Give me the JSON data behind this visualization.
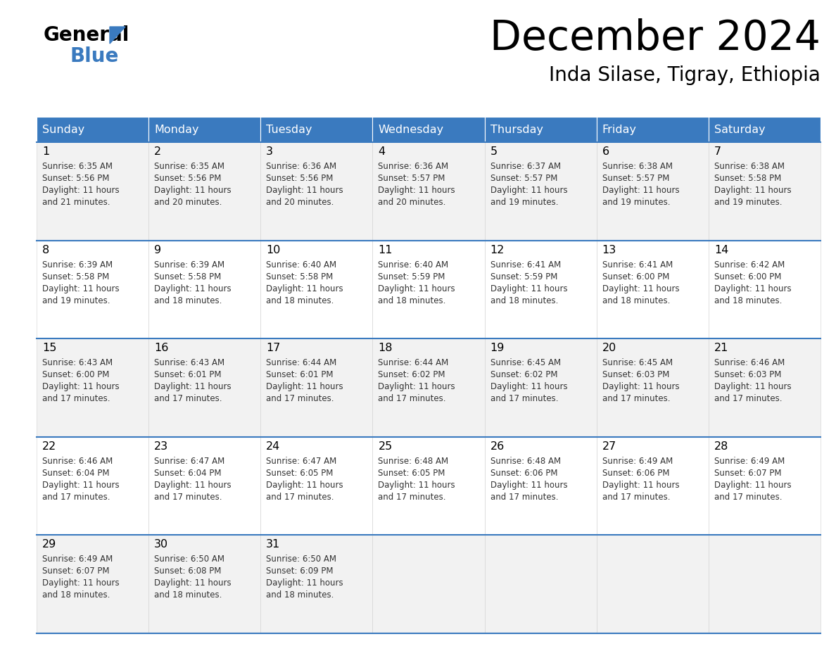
{
  "title": "December 2024",
  "subtitle": "Inda Silase, Tigray, Ethiopia",
  "header_color": "#3a7abf",
  "header_text_color": "#ffffff",
  "cell_bg_row0": "#f2f2f2",
  "cell_bg_row1": "#ffffff",
  "cell_bg_row2": "#f2f2f2",
  "cell_bg_row3": "#ffffff",
  "cell_bg_row4": "#f2f2f2",
  "day_names": [
    "Sunday",
    "Monday",
    "Tuesday",
    "Wednesday",
    "Thursday",
    "Friday",
    "Saturday"
  ],
  "days": [
    {
      "day": 1,
      "col": 0,
      "row": 0,
      "sunrise": "6:35 AM",
      "sunset": "5:56 PM",
      "daylight_hours": 11,
      "daylight_minutes": 21
    },
    {
      "day": 2,
      "col": 1,
      "row": 0,
      "sunrise": "6:35 AM",
      "sunset": "5:56 PM",
      "daylight_hours": 11,
      "daylight_minutes": 20
    },
    {
      "day": 3,
      "col": 2,
      "row": 0,
      "sunrise": "6:36 AM",
      "sunset": "5:56 PM",
      "daylight_hours": 11,
      "daylight_minutes": 20
    },
    {
      "day": 4,
      "col": 3,
      "row": 0,
      "sunrise": "6:36 AM",
      "sunset": "5:57 PM",
      "daylight_hours": 11,
      "daylight_minutes": 20
    },
    {
      "day": 5,
      "col": 4,
      "row": 0,
      "sunrise": "6:37 AM",
      "sunset": "5:57 PM",
      "daylight_hours": 11,
      "daylight_minutes": 19
    },
    {
      "day": 6,
      "col": 5,
      "row": 0,
      "sunrise": "6:38 AM",
      "sunset": "5:57 PM",
      "daylight_hours": 11,
      "daylight_minutes": 19
    },
    {
      "day": 7,
      "col": 6,
      "row": 0,
      "sunrise": "6:38 AM",
      "sunset": "5:58 PM",
      "daylight_hours": 11,
      "daylight_minutes": 19
    },
    {
      "day": 8,
      "col": 0,
      "row": 1,
      "sunrise": "6:39 AM",
      "sunset": "5:58 PM",
      "daylight_hours": 11,
      "daylight_minutes": 19
    },
    {
      "day": 9,
      "col": 1,
      "row": 1,
      "sunrise": "6:39 AM",
      "sunset": "5:58 PM",
      "daylight_hours": 11,
      "daylight_minutes": 18
    },
    {
      "day": 10,
      "col": 2,
      "row": 1,
      "sunrise": "6:40 AM",
      "sunset": "5:58 PM",
      "daylight_hours": 11,
      "daylight_minutes": 18
    },
    {
      "day": 11,
      "col": 3,
      "row": 1,
      "sunrise": "6:40 AM",
      "sunset": "5:59 PM",
      "daylight_hours": 11,
      "daylight_minutes": 18
    },
    {
      "day": 12,
      "col": 4,
      "row": 1,
      "sunrise": "6:41 AM",
      "sunset": "5:59 PM",
      "daylight_hours": 11,
      "daylight_minutes": 18
    },
    {
      "day": 13,
      "col": 5,
      "row": 1,
      "sunrise": "6:41 AM",
      "sunset": "6:00 PM",
      "daylight_hours": 11,
      "daylight_minutes": 18
    },
    {
      "day": 14,
      "col": 6,
      "row": 1,
      "sunrise": "6:42 AM",
      "sunset": "6:00 PM",
      "daylight_hours": 11,
      "daylight_minutes": 18
    },
    {
      "day": 15,
      "col": 0,
      "row": 2,
      "sunrise": "6:43 AM",
      "sunset": "6:00 PM",
      "daylight_hours": 11,
      "daylight_minutes": 17
    },
    {
      "day": 16,
      "col": 1,
      "row": 2,
      "sunrise": "6:43 AM",
      "sunset": "6:01 PM",
      "daylight_hours": 11,
      "daylight_minutes": 17
    },
    {
      "day": 17,
      "col": 2,
      "row": 2,
      "sunrise": "6:44 AM",
      "sunset": "6:01 PM",
      "daylight_hours": 11,
      "daylight_minutes": 17
    },
    {
      "day": 18,
      "col": 3,
      "row": 2,
      "sunrise": "6:44 AM",
      "sunset": "6:02 PM",
      "daylight_hours": 11,
      "daylight_minutes": 17
    },
    {
      "day": 19,
      "col": 4,
      "row": 2,
      "sunrise": "6:45 AM",
      "sunset": "6:02 PM",
      "daylight_hours": 11,
      "daylight_minutes": 17
    },
    {
      "day": 20,
      "col": 5,
      "row": 2,
      "sunrise": "6:45 AM",
      "sunset": "6:03 PM",
      "daylight_hours": 11,
      "daylight_minutes": 17
    },
    {
      "day": 21,
      "col": 6,
      "row": 2,
      "sunrise": "6:46 AM",
      "sunset": "6:03 PM",
      "daylight_hours": 11,
      "daylight_minutes": 17
    },
    {
      "day": 22,
      "col": 0,
      "row": 3,
      "sunrise": "6:46 AM",
      "sunset": "6:04 PM",
      "daylight_hours": 11,
      "daylight_minutes": 17
    },
    {
      "day": 23,
      "col": 1,
      "row": 3,
      "sunrise": "6:47 AM",
      "sunset": "6:04 PM",
      "daylight_hours": 11,
      "daylight_minutes": 17
    },
    {
      "day": 24,
      "col": 2,
      "row": 3,
      "sunrise": "6:47 AM",
      "sunset": "6:05 PM",
      "daylight_hours": 11,
      "daylight_minutes": 17
    },
    {
      "day": 25,
      "col": 3,
      "row": 3,
      "sunrise": "6:48 AM",
      "sunset": "6:05 PM",
      "daylight_hours": 11,
      "daylight_minutes": 17
    },
    {
      "day": 26,
      "col": 4,
      "row": 3,
      "sunrise": "6:48 AM",
      "sunset": "6:06 PM",
      "daylight_hours": 11,
      "daylight_minutes": 17
    },
    {
      "day": 27,
      "col": 5,
      "row": 3,
      "sunrise": "6:49 AM",
      "sunset": "6:06 PM",
      "daylight_hours": 11,
      "daylight_minutes": 17
    },
    {
      "day": 28,
      "col": 6,
      "row": 3,
      "sunrise": "6:49 AM",
      "sunset": "6:07 PM",
      "daylight_hours": 11,
      "daylight_minutes": 17
    },
    {
      "day": 29,
      "col": 0,
      "row": 4,
      "sunrise": "6:49 AM",
      "sunset": "6:07 PM",
      "daylight_hours": 11,
      "daylight_minutes": 18
    },
    {
      "day": 30,
      "col": 1,
      "row": 4,
      "sunrise": "6:50 AM",
      "sunset": "6:08 PM",
      "daylight_hours": 11,
      "daylight_minutes": 18
    },
    {
      "day": 31,
      "col": 2,
      "row": 4,
      "sunrise": "6:50 AM",
      "sunset": "6:09 PM",
      "daylight_hours": 11,
      "daylight_minutes": 18
    }
  ]
}
